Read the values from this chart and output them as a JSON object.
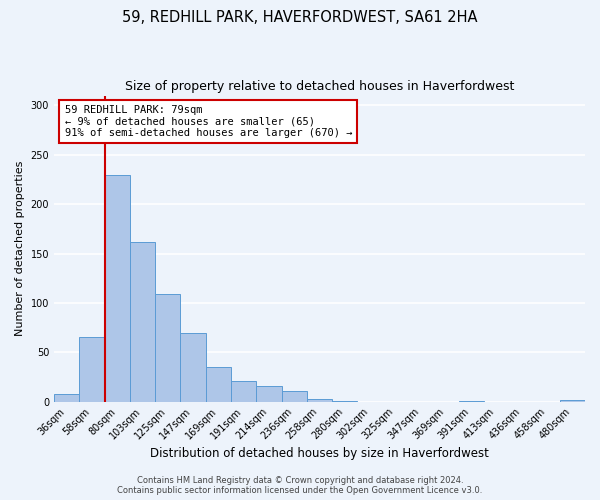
{
  "title": "59, REDHILL PARK, HAVERFORDWEST, SA61 2HA",
  "subtitle": "Size of property relative to detached houses in Haverfordwest",
  "xlabel": "Distribution of detached houses by size in Haverfordwest",
  "ylabel": "Number of detached properties",
  "bin_labels": [
    "36sqm",
    "58sqm",
    "80sqm",
    "103sqm",
    "125sqm",
    "147sqm",
    "169sqm",
    "191sqm",
    "214sqm",
    "236sqm",
    "258sqm",
    "280sqm",
    "302sqm",
    "325sqm",
    "347sqm",
    "369sqm",
    "391sqm",
    "413sqm",
    "436sqm",
    "458sqm",
    "480sqm"
  ],
  "bar_values": [
    8,
    65,
    230,
    162,
    109,
    70,
    35,
    21,
    16,
    11,
    3,
    1,
    0,
    0,
    0,
    0,
    1,
    0,
    0,
    0,
    2
  ],
  "bar_color": "#aec6e8",
  "bar_edge_color": "#5b9bd5",
  "property_line_label": "59 REDHILL PARK: 79sqm",
  "annotation_line1": "← 9% of detached houses are smaller (65)",
  "annotation_line2": "91% of semi-detached houses are larger (670) →",
  "annotation_box_color": "#ffffff",
  "annotation_box_edge_color": "#cc0000",
  "vline_color": "#cc0000",
  "ylim": [
    0,
    310
  ],
  "yticks": [
    0,
    50,
    100,
    150,
    200,
    250,
    300
  ],
  "footer_line1": "Contains HM Land Registry data © Crown copyright and database right 2024.",
  "footer_line2": "Contains public sector information licensed under the Open Government Licence v3.0.",
  "bg_color": "#edf3fb",
  "plot_bg_color": "#edf3fb",
  "grid_color": "#ffffff",
  "title_fontsize": 10.5,
  "subtitle_fontsize": 9,
  "xlabel_fontsize": 8.5,
  "ylabel_fontsize": 8,
  "tick_fontsize": 7,
  "footer_fontsize": 6,
  "annot_fontsize": 7.5
}
